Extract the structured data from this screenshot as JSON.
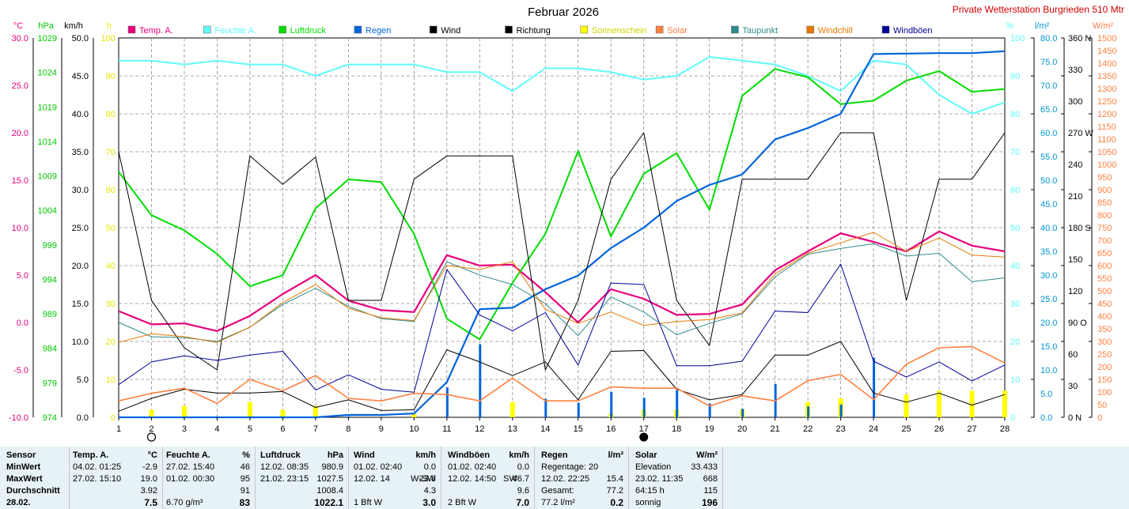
{
  "station": "Private Wetterstation Burgrieden 510 Mtr",
  "chart_data": {
    "type": "line",
    "title": "Februar 2026",
    "x": [
      1,
      2,
      3,
      4,
      5,
      6,
      7,
      8,
      9,
      10,
      11,
      12,
      13,
      14,
      15,
      16,
      17,
      18,
      19,
      20,
      21,
      22,
      23,
      24,
      25,
      26,
      27,
      28
    ],
    "x_ticks": [
      "1",
      "2",
      "3",
      "4",
      "5",
      "6",
      "7",
      "8",
      "9",
      "10",
      "11",
      "12",
      "13",
      "14",
      "15",
      "16",
      "17",
      "18",
      "19",
      "20",
      "21",
      "22",
      "23",
      "24",
      "25",
      "26",
      "27",
      "28"
    ],
    "axes": {
      "temp": {
        "unit": "°C",
        "range": [
          -10,
          30
        ],
        "ticks": [
          "-10.0",
          "-5.0",
          "0.0",
          "5.0",
          "10.0",
          "15.0",
          "20.0",
          "25.0",
          "30.0"
        ],
        "color": "#e6007e"
      },
      "pressure": {
        "unit": "hPa",
        "range": [
          974,
          1029
        ],
        "ticks": [
          "974",
          "979",
          "984",
          "989",
          "994",
          "999",
          "1004",
          "1009",
          "1014",
          "1019",
          "1024",
          "1029"
        ],
        "color": "#00c800"
      },
      "wind": {
        "unit": "km/h",
        "range": [
          0,
          50
        ],
        "ticks": [
          "0.0",
          "5.0",
          "10.0",
          "15.0",
          "20.0",
          "25.0",
          "30.0",
          "35.0",
          "40.0",
          "45.0",
          "50.0"
        ],
        "color": "#000000"
      },
      "sunshine": {
        "unit": "h",
        "range": [
          0,
          100
        ],
        "ticks": [
          "0",
          "10",
          "20",
          "30",
          "40",
          "50",
          "60",
          "70",
          "80",
          "90",
          "100"
        ],
        "color": "#e6e600"
      },
      "humidity": {
        "unit": "%",
        "range": [
          0,
          100
        ],
        "ticks": [
          "0",
          "10",
          "20",
          "30",
          "40",
          "50",
          "60",
          "70",
          "80",
          "90",
          "100"
        ],
        "color": "#5ffbfb"
      },
      "rain": {
        "unit": "l/m²",
        "range": [
          0,
          80
        ],
        "ticks": [
          "0.0",
          "5.0",
          "10.0",
          "15.0",
          "20.0",
          "25.0",
          "30.0",
          "35.0",
          "40.0",
          "45.0",
          "50.0",
          "55.0",
          "60.0",
          "65.0",
          "70.0",
          "75.0",
          "80.0"
        ],
        "color": "#0096d2"
      },
      "direction": {
        "unit": "",
        "range": [
          0,
          360
        ],
        "ticks": [
          "0",
          "30",
          "60",
          "90",
          "120",
          "150",
          "180",
          "210",
          "240",
          "270",
          "300",
          "330",
          "360"
        ],
        "labels": [
          "0 N",
          "30",
          "60",
          "90 O",
          "120",
          "150",
          "180 S",
          "210",
          "240",
          "270 W",
          "300",
          "330",
          "360 N"
        ],
        "color": "#000000"
      },
      "solar": {
        "unit": "W/m²",
        "range": [
          0,
          1500
        ],
        "ticks": [
          "0",
          "50",
          "100",
          "150",
          "200",
          "250",
          "300",
          "350",
          "400",
          "450",
          "500",
          "550",
          "600",
          "650",
          "700",
          "750",
          "800",
          "850",
          "900",
          "950",
          "1000",
          "1050",
          "1100",
          "1150",
          "1200",
          "1250",
          "1300",
          "1350",
          "1400",
          "1450",
          "1500"
        ],
        "color": "#ff8040"
      }
    },
    "legend": [
      {
        "name": "Temp. A.",
        "color": "#e6007e"
      },
      {
        "name": "Feuchte A.",
        "color": "#5ffbfb"
      },
      {
        "name": "Luftdruck",
        "color": "#00dc00"
      },
      {
        "name": "Regen",
        "color": "#0064dc"
      },
      {
        "name": "Wind",
        "color": "#000000"
      },
      {
        "name": "Richtung",
        "color": "#000000"
      },
      {
        "name": "Sonnenschein",
        "color": "#ffff00"
      },
      {
        "name": "Solar",
        "color": "#ff8040"
      },
      {
        "name": "Taupunkt",
        "color": "#2e8b8b"
      },
      {
        "name": "Windchill",
        "color": "#e67800"
      },
      {
        "name": "Windböen",
        "color": "#000096"
      }
    ],
    "series": [
      {
        "name": "Temp. A.",
        "axis": "temp",
        "color": "#e6007e",
        "width": 2.2,
        "values": [
          1.2,
          -0.2,
          -0.1,
          -0.9,
          0.7,
          3.0,
          5.0,
          2.3,
          1.3,
          1.1,
          7.1,
          6.0,
          6.1,
          3.2,
          0.0,
          3.5,
          2.5,
          0.8,
          0.9,
          1.9,
          5.5,
          7.5,
          9.4,
          8.5,
          7.5,
          9.6,
          8.1,
          7.5
        ]
      },
      {
        "name": "Feuchte A.",
        "axis": "humidity",
        "color": "#5ffbfb",
        "width": 2,
        "values": [
          94,
          94,
          93,
          94,
          93,
          93,
          90,
          93,
          93,
          93,
          91,
          91,
          86,
          92,
          92,
          91,
          89,
          90,
          95,
          94,
          93,
          90,
          86,
          94,
          93,
          85,
          80,
          83
        ]
      },
      {
        "name": "Luftdruck",
        "axis": "pressure",
        "color": "#00dc00",
        "width": 2,
        "values": [
          1009.6,
          1003.3,
          1001.1,
          997.7,
          993.0,
          994.6,
          1004.3,
          1008.5,
          1008.1,
          1000.6,
          988.3,
          985.3,
          993.5,
          1000.6,
          1012.6,
          1000.2,
          1009.3,
          1012.3,
          1004.1,
          1020.6,
          1024.5,
          1023.3,
          1019.4,
          1019.9,
          1022.8,
          1024.2,
          1021.2,
          1021.6
        ]
      },
      {
        "name": "Regen",
        "axis": "rain",
        "color": "#0064dc",
        "width": 2.2,
        "values": [
          0,
          0,
          0,
          0,
          0,
          0,
          0,
          0.5,
          0.5,
          0.8,
          7.4,
          22.8,
          23.1,
          27.0,
          29.9,
          35.7,
          40.0,
          45.6,
          49.0,
          51.2,
          58.6,
          61.0,
          64.0,
          76.6,
          76.7,
          76.8,
          76.8,
          77.2
        ]
      },
      {
        "name": "Wind",
        "axis": "wind",
        "color": "#000000",
        "width": 1,
        "values": [
          0.8,
          2.5,
          3.7,
          3.2,
          3.2,
          3.4,
          1.3,
          2.3,
          0.9,
          1.0,
          8.9,
          7.3,
          5.5,
          7.3,
          2.3,
          8.7,
          8.8,
          3.7,
          2.3,
          3.0,
          8.2,
          8.2,
          10.0,
          3.2,
          2.0,
          3.2,
          1.6,
          3.0
        ]
      },
      {
        "name": "Richtung",
        "axis": "direction",
        "color": "#000000",
        "width": 1,
        "values": [
          252,
          111,
          66,
          45,
          248,
          221,
          247,
          111,
          111,
          226,
          248,
          248,
          248,
          45,
          111,
          226,
          270,
          111,
          68,
          226,
          226,
          226,
          270,
          270,
          111,
          226,
          226,
          270
        ]
      },
      {
        "name": "Taupunkt",
        "axis": "temp",
        "color": "#2e8b8b",
        "width": 1,
        "values": [
          0.0,
          -1.5,
          -1.6,
          -2.0,
          -0.5,
          1.9,
          3.6,
          1.7,
          0.4,
          0.1,
          6.4,
          5.0,
          4.0,
          2.0,
          -1.4,
          2.7,
          1.1,
          -1.3,
          -0.1,
          0.9,
          4.8,
          7.2,
          7.8,
          8.3,
          7.0,
          7.3,
          4.3,
          4.7
        ]
      },
      {
        "name": "Windchill",
        "axis": "temp",
        "color": "#e67800",
        "width": 1,
        "values": [
          -2.1,
          -1.2,
          -1.5,
          -2.1,
          -0.5,
          2.1,
          4.0,
          1.5,
          0.5,
          0.2,
          6.0,
          5.6,
          6.4,
          1.4,
          -0.1,
          1.1,
          -0.3,
          0.1,
          0.3,
          1.0,
          5.1,
          7.3,
          8.4,
          9.5,
          7.5,
          8.9,
          7.1,
          6.9
        ]
      },
      {
        "name": "Windböen",
        "axis": "wind",
        "color": "#000096",
        "width": 1,
        "values": [
          4.3,
          7.3,
          8.1,
          7.5,
          8.2,
          8.7,
          3.6,
          5.6,
          3.7,
          3.3,
          19.5,
          13.5,
          11.4,
          13.8,
          6.9,
          17.7,
          17.5,
          6.8,
          6.8,
          7.4,
          14.0,
          13.8,
          20.2,
          7.4,
          5.3,
          7.3,
          4.8,
          6.9
        ]
      },
      {
        "name": "Solar",
        "axis": "solar",
        "color": "#ff8040",
        "width": 1.6,
        "values": [
          65,
          95,
          115,
          55,
          150,
          105,
          165,
          75,
          65,
          95,
          90,
          65,
          155,
          65,
          65,
          120,
          115,
          115,
          45,
          85,
          65,
          145,
          170,
          70,
          210,
          275,
          280,
          215
        ]
      }
    ],
    "bars": [
      {
        "name": "Sonnenschein",
        "axis": "sunshine",
        "color": "#ffff00",
        "values": [
          0,
          2,
          3,
          0,
          4,
          2,
          3,
          0,
          0,
          1,
          0,
          0,
          4,
          0,
          0,
          1,
          2,
          2,
          0,
          2,
          0,
          4,
          5,
          0,
          6,
          7,
          7,
          7
        ]
      },
      {
        "name": "Regen täglich",
        "axis": "rain",
        "color": "#0064dc",
        "values": [
          0,
          0,
          0,
          0,
          0,
          0,
          0,
          0.2,
          0,
          0,
          6.3,
          15.4,
          0,
          3.9,
          3.1,
          5.4,
          4.1,
          5.7,
          2.9,
          1.8,
          7.0,
          2.3,
          2.7,
          12.6,
          0,
          0,
          0,
          0
        ]
      }
    ],
    "moon": {
      "full": "2",
      "new": "17"
    }
  },
  "stats": [
    {
      "id": "sensor",
      "title": "Sensor",
      "unit": "",
      "rows": [
        [
          "MinWert",
          "",
          ""
        ],
        [
          "MaxWert",
          "",
          ""
        ],
        [
          "Durchschnitt",
          "",
          ""
        ],
        [
          "28.02.",
          "",
          ""
        ]
      ]
    },
    {
      "id": "temp",
      "title": "Temp. A.",
      "unit": "°C",
      "rows": [
        [
          "04.02.  01:25",
          "",
          "-2.9"
        ],
        [
          "27.02.  15:10",
          "",
          "19.0"
        ],
        [
          "",
          "",
          "3.92"
        ],
        [
          "",
          "",
          "7.5"
        ]
      ]
    },
    {
      "id": "humidity",
      "title": "Feuchte A.",
      "unit": "%",
      "rows": [
        [
          "27.02.  15:40",
          "",
          "46"
        ],
        [
          "01.02.  00:30",
          "",
          "95"
        ],
        [
          "",
          "",
          "91"
        ],
        [
          "6.70 g/m³",
          "",
          "83"
        ]
      ]
    },
    {
      "id": "pressure",
      "title": "Luftdruck",
      "unit": "hPa",
      "rows": [
        [
          "12.02.  08:35",
          "",
          "980.9"
        ],
        [
          "21.02.  23:15",
          "",
          "1027.5"
        ],
        [
          "",
          "",
          "1008.4"
        ],
        [
          "",
          "",
          "1022.1"
        ]
      ]
    },
    {
      "id": "wind",
      "title": "Wind",
      "unit": "km/h",
      "rows": [
        [
          "01.02.  02:40",
          "",
          "0.0"
        ],
        [
          "12.02.  14",
          "W-SW",
          "23.8"
        ],
        [
          "",
          "",
          "4.3"
        ],
        [
          "1 Bft W",
          "",
          "3.0"
        ]
      ]
    },
    {
      "id": "gusts",
      "title": "Windböen",
      "unit": "km/h",
      "rows": [
        [
          "01.02.  02:40",
          "",
          "0.0"
        ],
        [
          "12.02.  14:50",
          "SW",
          "46.7"
        ],
        [
          "",
          "",
          "9.6"
        ],
        [
          "2 Bft W",
          "",
          "7.0"
        ]
      ]
    },
    {
      "id": "rain",
      "title": "Regen",
      "unit": "l/m²",
      "rows": [
        [
          "Regentage: 20",
          "",
          ""
        ],
        [
          "12.02.  22:25",
          "",
          "15.4"
        ],
        [
          "Gesamt:",
          "",
          "77.2"
        ],
        [
          "77.2 l/m²",
          "",
          "0.2"
        ]
      ]
    },
    {
      "id": "solar",
      "title": "Solar",
      "unit": "W/m²",
      "rows": [
        [
          "Elevation",
          "",
          "33.433"
        ],
        [
          "23.02.  11:35",
          "",
          "668"
        ],
        [
          "64:15 h",
          "",
          "115"
        ],
        [
          "sonnig",
          "",
          "196"
        ]
      ]
    }
  ]
}
